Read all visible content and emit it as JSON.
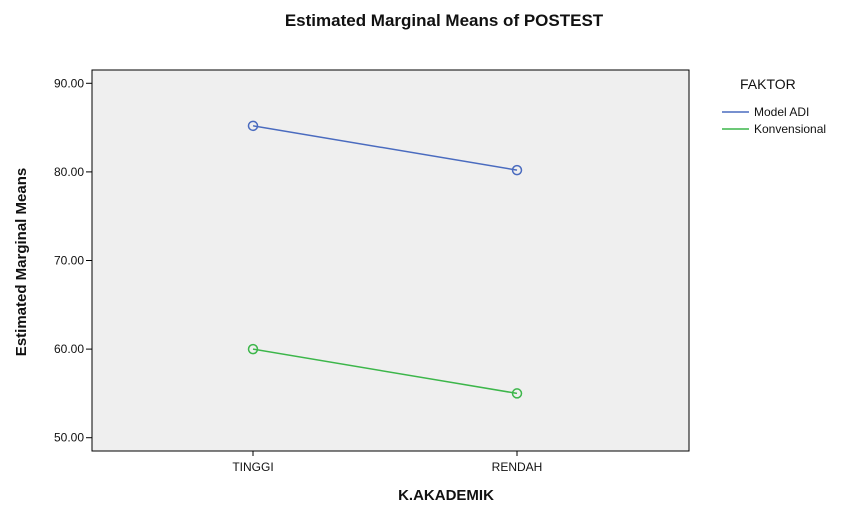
{
  "chart_data": {
    "type": "line",
    "title": "Estimated Marginal Means of POSTEST",
    "xlabel": "K.AKADEMIK",
    "ylabel": "Estimated Marginal Means",
    "categories": [
      "TINGGI",
      "RENDAH"
    ],
    "yticks": [
      "50.00",
      "60.00",
      "70.00",
      "80.00",
      "90.00"
    ],
    "ylim": [
      48.5,
      91.5
    ],
    "grid": false,
    "legend": {
      "title": "FAKTOR",
      "placement": "right"
    },
    "series": [
      {
        "name": "Model ADI",
        "values": [
          85.2,
          80.2
        ],
        "color": "#4a6bbf"
      },
      {
        "name": "Konvensional",
        "values": [
          60.0,
          55.0
        ],
        "color": "#3cb64a"
      }
    ],
    "plot_background": "#efefef"
  }
}
